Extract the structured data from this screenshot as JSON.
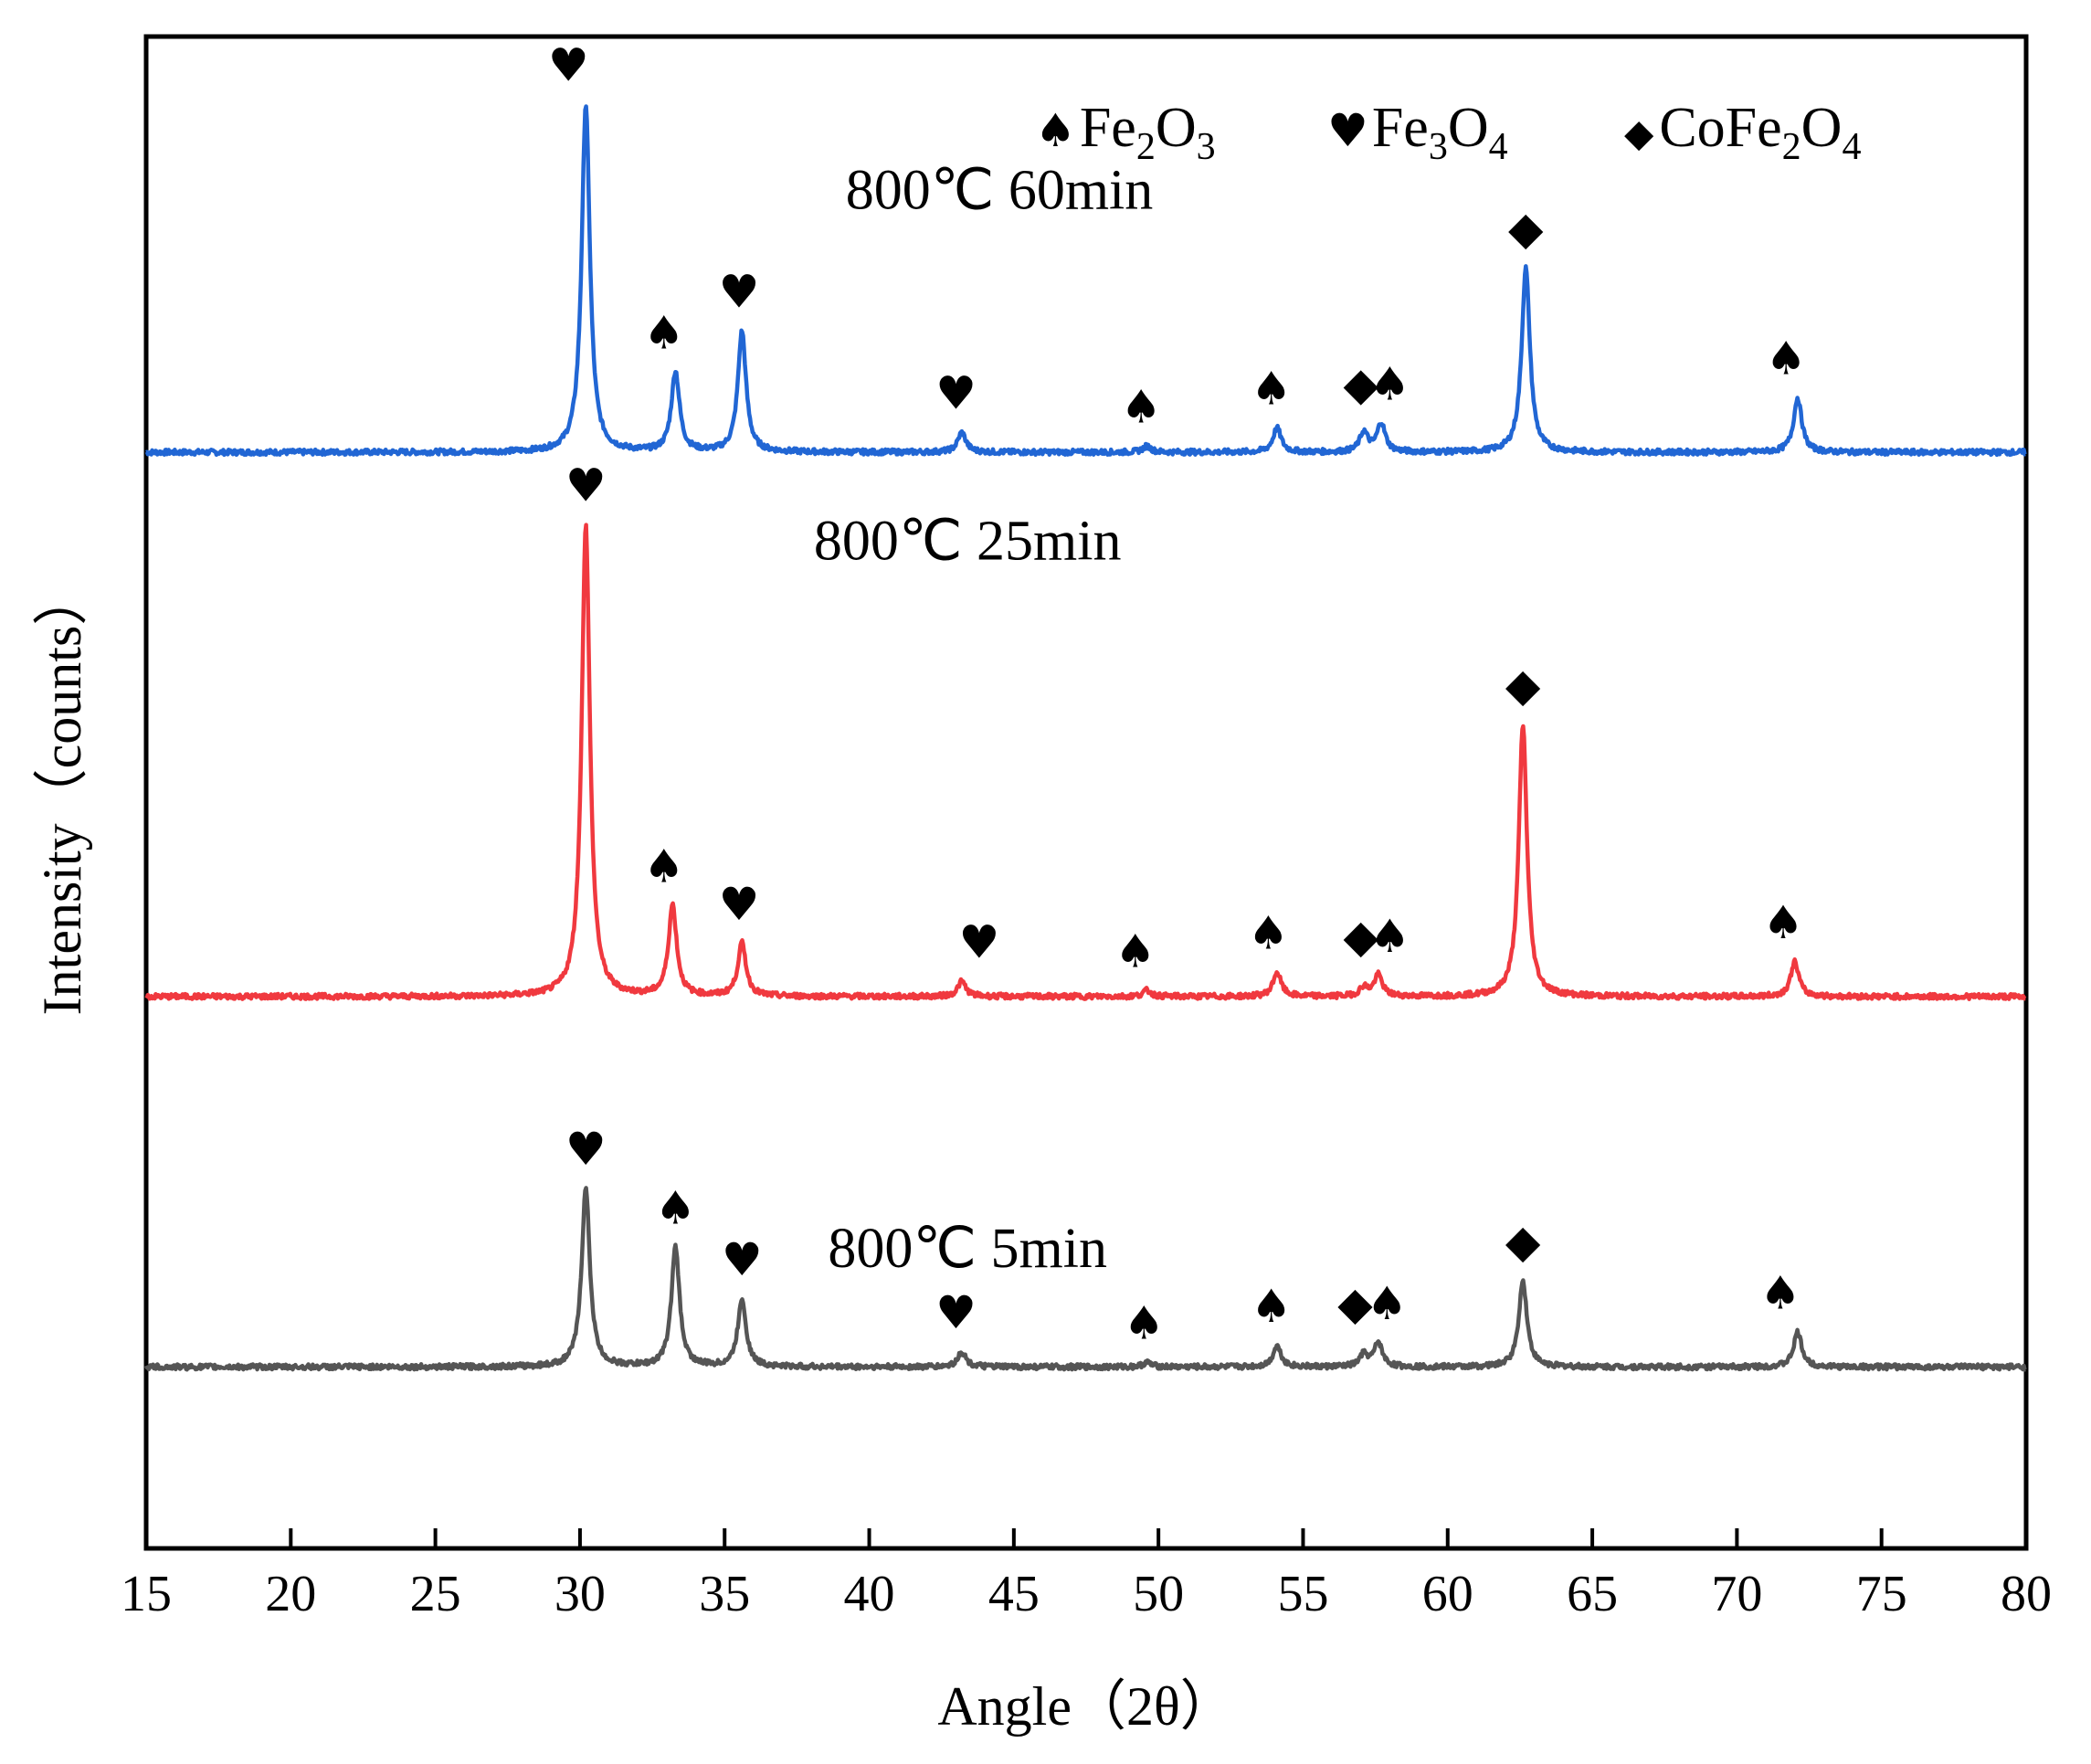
{
  "chart_data": {
    "type": "line",
    "title": "",
    "xlabel": "Angle（2θ）",
    "ylabel": "Intensity（counts）",
    "xlim": [
      15,
      80
    ],
    "ylim": [
      0,
      100
    ],
    "xticks": [
      15,
      20,
      25,
      30,
      35,
      40,
      45,
      50,
      55,
      60,
      65,
      70,
      75,
      80
    ],
    "legend": {
      "position": "top-right",
      "entries": [
        {
          "symbol": "♠",
          "phase": "Fe",
          "parts": [
            [
              "Fe",
              "2",
              "O",
              "3"
            ]
          ],
          "sub": [
            "2",
            "3"
          ],
          "label": "Fe2O3"
        },
        {
          "symbol": "♥",
          "phase": "Fe",
          "sub": [
            "3",
            "4"
          ],
          "label": "Fe3O4"
        },
        {
          "symbol": "◆",
          "phase": "CoFe",
          "sub": [
            "2",
            "4"
          ],
          "label": "CoFe2O4"
        }
      ]
    },
    "series": [
      {
        "name": "800℃ 60min",
        "color": "#2166d4",
        "baseline": 72.5,
        "peaks": [
          [
            30.2,
            23.0
          ],
          [
            33.3,
            5.3
          ],
          [
            35.6,
            8.0
          ],
          [
            43.2,
            1.3
          ],
          [
            49.6,
            0.4
          ],
          [
            54.1,
            1.6
          ],
          [
            57.1,
            1.3
          ],
          [
            57.7,
            1.9
          ],
          [
            62.7,
            12.2
          ],
          [
            72.1,
            3.6
          ]
        ],
        "markers": [
          [
            "♥",
            29.6
          ],
          [
            "♠",
            32.9
          ],
          [
            "♥",
            35.5
          ],
          [
            "♥",
            43.0
          ],
          [
            "♠",
            49.4
          ],
          [
            "♠",
            53.9
          ],
          [
            "◆",
            57.0
          ],
          [
            "♠",
            58.0
          ],
          [
            "◆",
            62.7
          ],
          [
            "♠",
            71.7
          ]
        ]
      },
      {
        "name": "800℃ 25min",
        "color": "#f0393f",
        "baseline": 36.5,
        "peaks": [
          [
            30.2,
            31.2
          ],
          [
            33.2,
            6.0
          ],
          [
            35.6,
            3.5
          ],
          [
            43.2,
            1.0
          ],
          [
            49.6,
            0.4
          ],
          [
            54.1,
            1.6
          ],
          [
            57.1,
            0.6
          ],
          [
            57.6,
            1.4
          ],
          [
            62.6,
            18.0
          ],
          [
            72.0,
            2.3
          ]
        ],
        "markers": [
          [
            "♥",
            30.2
          ],
          [
            "♠",
            32.9
          ],
          [
            "♥",
            35.5
          ],
          [
            "♥",
            43.8
          ],
          [
            "♠",
            49.2
          ],
          [
            "♠",
            53.8
          ],
          [
            "◆",
            57.0
          ],
          [
            "♠",
            58.0
          ],
          [
            "◆",
            62.6
          ],
          [
            "♠",
            71.6
          ]
        ]
      },
      {
        "name": "800℃ 5min",
        "color": "#555555",
        "baseline": 12.0,
        "peaks": [
          [
            30.2,
            11.8
          ],
          [
            33.3,
            7.9
          ],
          [
            35.6,
            4.5
          ],
          [
            43.2,
            1.0
          ],
          [
            49.6,
            0.3
          ],
          [
            54.1,
            1.4
          ],
          [
            57.1,
            0.8
          ],
          [
            57.6,
            1.6
          ],
          [
            62.6,
            5.7
          ],
          [
            72.1,
            2.3
          ]
        ],
        "markers": [
          [
            "♥",
            30.2
          ],
          [
            "♠",
            33.3
          ],
          [
            "♥",
            35.6
          ],
          [
            "♥",
            43.0
          ],
          [
            "♠",
            49.5
          ],
          [
            "♠",
            53.9
          ],
          [
            "◆",
            56.8
          ],
          [
            "♠",
            57.9
          ],
          [
            "◆",
            62.6
          ],
          [
            "♠",
            71.5
          ]
        ]
      }
    ]
  }
}
